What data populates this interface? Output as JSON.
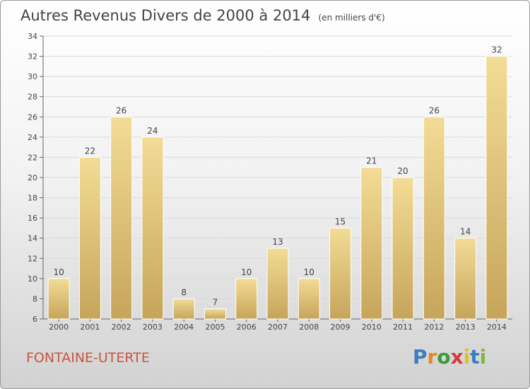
{
  "header": {
    "title": "Autres Revenus Divers de 2000 à 2014",
    "unit": "(en milliers d'€)"
  },
  "footer": {
    "commune": "FONTAINE-UTERTE",
    "logo_letters": [
      "P",
      "r",
      "o",
      "x",
      "i",
      "t",
      "i"
    ]
  },
  "colors": {
    "bar_light": "#f3dc96",
    "bar_dark": "#c6a55a",
    "commune": "#c8553f",
    "text": "#444444"
  },
  "chart_data": {
    "type": "bar",
    "title": "Autres Revenus Divers de 2000 à 2014",
    "categories": [
      "2000",
      "2001",
      "2002",
      "2003",
      "2004",
      "2005",
      "2006",
      "2007",
      "2008",
      "2009",
      "2010",
      "2011",
      "2012",
      "2013",
      "2014"
    ],
    "values": [
      10,
      22,
      26,
      24,
      8,
      7,
      10,
      13,
      10,
      15,
      21,
      20,
      26,
      14,
      32
    ],
    "ylim": [
      6,
      34
    ],
    "yticks": [
      6,
      8,
      10,
      12,
      14,
      16,
      18,
      20,
      22,
      24,
      26,
      28,
      30,
      32,
      34
    ],
    "grid": true,
    "data_labels": true
  }
}
